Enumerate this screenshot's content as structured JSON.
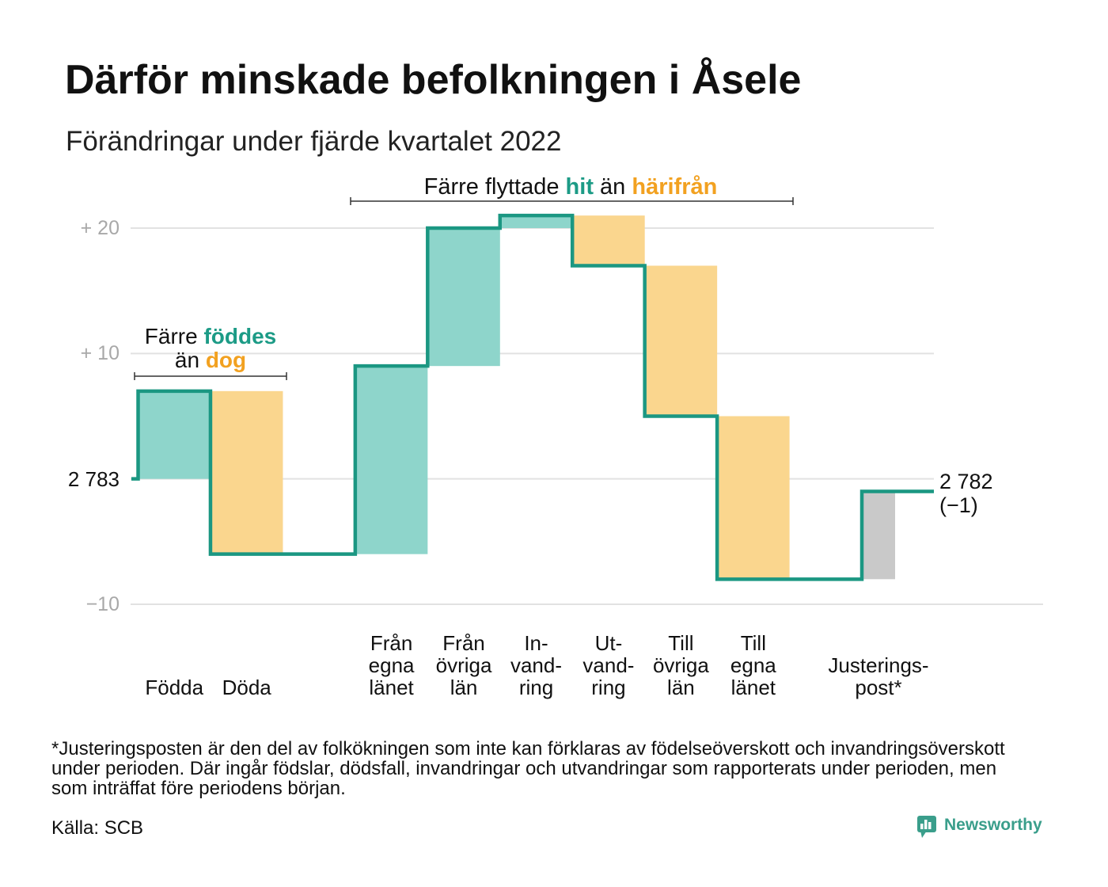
{
  "chart_data": {
    "type": "bar",
    "subtype": "waterfall",
    "title": "Därför minskade befolkningen i Åsele",
    "subtitle": "Förändringar under fjärde kvartalet 2022",
    "start_population": 2783,
    "end_population": 2782,
    "net_change": -1,
    "categories": [
      [
        "Födda"
      ],
      [
        "Döda"
      ],
      [
        "Från",
        "egna",
        "länet"
      ],
      [
        "Från",
        "övriga",
        "län"
      ],
      [
        "In-",
        "vand-",
        "ring"
      ],
      [
        "Ut-",
        "vand-",
        "ring"
      ],
      [
        "Till",
        "övriga",
        "län"
      ],
      [
        "Till",
        "egna",
        "länet"
      ],
      [
        "Justerings-",
        "post*"
      ]
    ],
    "values": [
      7,
      -13,
      15,
      11,
      1,
      -4,
      -12,
      -13,
      7
    ],
    "bar_colors": [
      "#8ed5cb",
      "#fad68e",
      "#8ed5cb",
      "#8ed5cb",
      "#8ed5cb",
      "#fad68e",
      "#fad68e",
      "#fad68e",
      "#c9c9c9"
    ],
    "y_ticks": [
      {
        "value": 20,
        "label": "+ 20"
      },
      {
        "value": 10,
        "label": "+ 10"
      },
      {
        "value": 0,
        "label": "2 783"
      },
      {
        "value": -10,
        "label": "−10"
      }
    ],
    "ylim": [
      -10,
      21
    ],
    "grid": true,
    "end_label": "2 782",
    "end_change_label": "(−1)",
    "annotations": {
      "births": {
        "line1_text": "Färre ",
        "line1_highlight": "föddes",
        "line2_text": "än ",
        "line2_highlight": "dog"
      },
      "migration": {
        "text_before": "Färre flyttade ",
        "highlight_in": "hit",
        "text_middle": " än ",
        "highlight_out": "härifrån"
      }
    }
  },
  "footnote_lines": [
    "*Justeringsposten är den del av folkökningen som inte kan förklaras av födelseöverskott och invandringsöverskott",
    "under perioden. Där ingår födslar, dödsfall, invandringar och utvandringar som rapporterats under perioden, men",
    "som inträffat före periodens början."
  ],
  "source": "Källa: SCB",
  "brand": {
    "name": "Newsworthy",
    "icon": "newsworthy-logo-icon"
  },
  "colors": {
    "line": "#1b9782",
    "grid": "#e2e2e2",
    "highlight_teal": "#1c9b86",
    "highlight_orange": "#f2a120",
    "tick_label": "#a8a8a8",
    "brand": "#3a9e8b"
  }
}
